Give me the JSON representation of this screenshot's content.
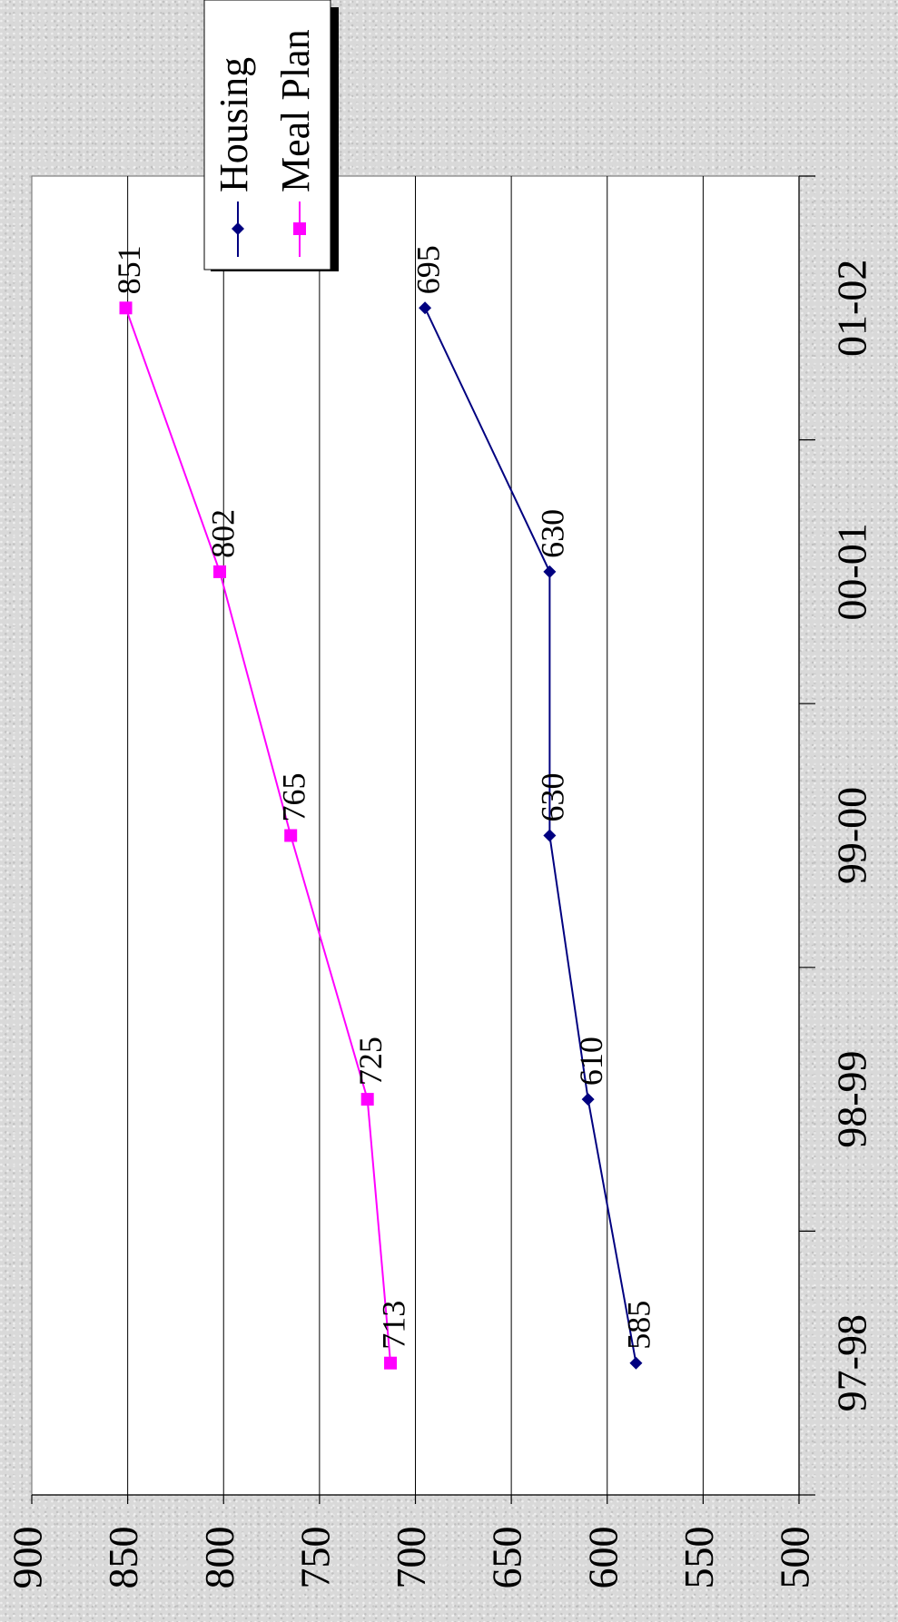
{
  "chart_data": {
    "type": "line",
    "orientation": "rotated-90-clockwise",
    "categories": [
      "97-98",
      "98-99",
      "99-00",
      "00-01",
      "01-02"
    ],
    "series": [
      {
        "name": "Housing",
        "values": [
          585,
          610,
          630,
          630,
          695
        ],
        "color": "#000080",
        "marker": "diamond"
      },
      {
        "name": "Meal Plan",
        "values": [
          713,
          725,
          765,
          802,
          851
        ],
        "color": "#ff00ff",
        "marker": "square"
      }
    ],
    "yticks": [
      500,
      550,
      600,
      650,
      700,
      750,
      800,
      850,
      900
    ],
    "ylim": [
      500,
      900
    ],
    "title": "",
    "xlabel": "",
    "ylabel": "",
    "grid": true,
    "data_labels": true,
    "legend_position": "top-right"
  }
}
